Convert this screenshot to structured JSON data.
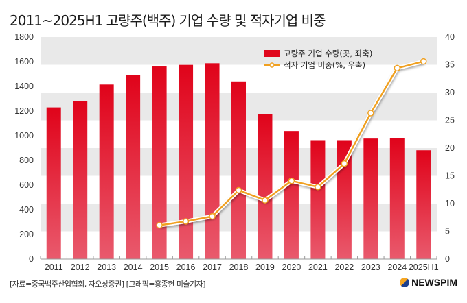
{
  "title": "2011~2025H1 고량주(백주) 기업 수량 및 적자기업 비중",
  "footer": {
    "source": "[자료=중국백주산업협회, 자오상증권] [그래픽=홍종현 미술기자]",
    "logo": "NEWSPIM"
  },
  "chart_data": {
    "type": "bar+line",
    "categories": [
      "2011",
      "2012",
      "2013",
      "2014",
      "2015",
      "2016",
      "2017",
      "2018",
      "2019",
      "2020",
      "2021",
      "2022",
      "2023",
      "2024",
      "2025H1"
    ],
    "series": [
      {
        "name": "고량주 기업 수량(곳, 좌축)",
        "type": "bar",
        "axis": "left",
        "color": "#e0061c",
        "values": [
          1230,
          1281,
          1415,
          1492,
          1561,
          1574,
          1587,
          1440,
          1173,
          1038,
          964,
          964,
          977,
          983,
          882
        ]
      },
      {
        "name": "적자 기업 비중(%, 우축)",
        "type": "line",
        "axis": "right",
        "color": "#f0a020",
        "values": [
          null,
          null,
          null,
          null,
          6.1,
          6.8,
          7.7,
          12.4,
          10.6,
          14.1,
          13.0,
          17.2,
          26.3,
          34.4,
          35.6
        ]
      }
    ],
    "left_axis": {
      "range": [
        0,
        1800
      ],
      "ticks": [
        "0",
        "200",
        "400",
        "600",
        "800",
        "1000",
        "1200",
        "1400",
        "1600",
        "1800"
      ]
    },
    "right_axis": {
      "range": [
        0,
        40
      ],
      "ticks": [
        "0",
        "5",
        "10",
        "15",
        "20",
        "25",
        "30",
        "35",
        "40"
      ]
    },
    "grid": "alternating bands",
    "legend": "top-right"
  }
}
